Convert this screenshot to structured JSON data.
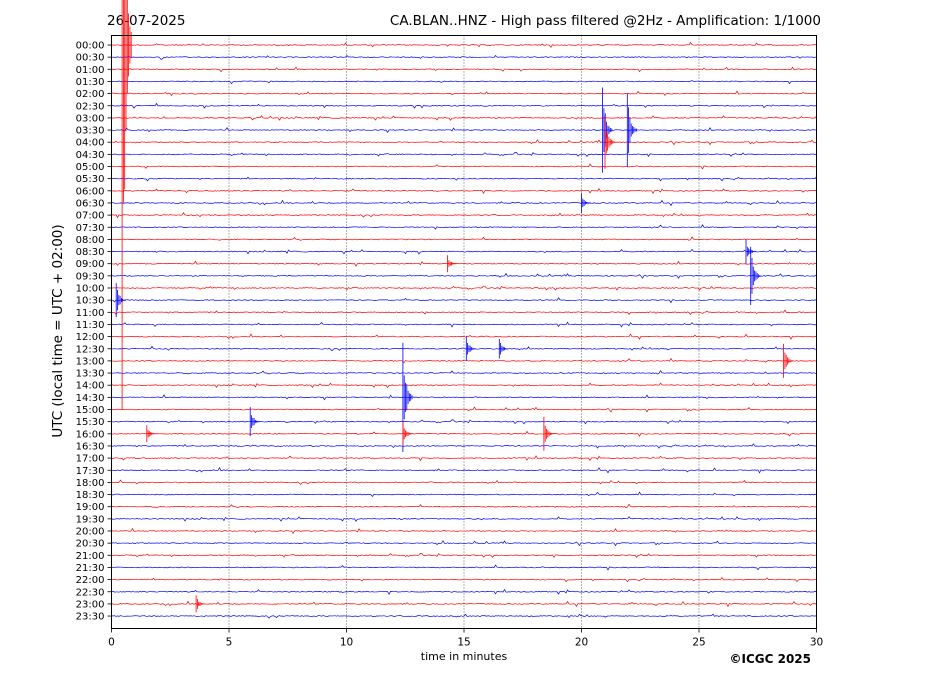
{
  "chart_data": {
    "type": "line",
    "header_left": "26-07-2025",
    "title": "CA.BLAN..HNZ - High pass filtered @2Hz - Amplification: 1/1000",
    "xlabel": "time in minutes",
    "ylabel": "UTC (local time = UTC + 02:00)",
    "copyright": "©ICGC 2025",
    "xlim": [
      0,
      30
    ],
    "x_ticks": [
      "0",
      "5",
      "10",
      "15",
      "20",
      "25",
      "30"
    ],
    "x_tick_values": [
      0,
      5,
      10,
      15,
      20,
      25,
      30
    ],
    "grid": "dotted vertical at 5-minute intervals",
    "row_labels": [
      "00:00",
      "00:30",
      "01:00",
      "01:30",
      "02:00",
      "02:30",
      "03:00",
      "03:30",
      "04:00",
      "04:30",
      "05:00",
      "05:30",
      "06:00",
      "06:30",
      "07:00",
      "07:30",
      "08:00",
      "08:30",
      "09:00",
      "09:30",
      "10:00",
      "10:30",
      "11:00",
      "11:30",
      "12:00",
      "12:30",
      "13:00",
      "13:30",
      "14:00",
      "14:30",
      "15:00",
      "15:30",
      "16:00",
      "16:30",
      "17:00",
      "17:30",
      "18:00",
      "18:30",
      "19:00",
      "19:30",
      "20:00",
      "20:30",
      "21:00",
      "21:30",
      "22:00",
      "22:30",
      "23:00",
      "23:30"
    ],
    "trace_colors": [
      "#ff0000",
      "#0000ff"
    ],
    "events": [
      {
        "row": 0,
        "minute": 0.45,
        "amp": 30
      },
      {
        "row": 7,
        "minute": 20.9,
        "amp": 3.5
      },
      {
        "row": 7,
        "minute": 21.95,
        "amp": 3
      },
      {
        "row": 8,
        "minute": 21.0,
        "amp": 2.2
      },
      {
        "row": 21,
        "minute": 0.2,
        "amp": 1.4
      },
      {
        "row": 19,
        "minute": 27.2,
        "amp": 2.4
      },
      {
        "row": 17,
        "minute": 27.0,
        "amp": 1.0
      },
      {
        "row": 25,
        "minute": 15.1,
        "amp": 1.0
      },
      {
        "row": 25,
        "minute": 16.5,
        "amp": 0.8
      },
      {
        "row": 26,
        "minute": 28.6,
        "amp": 1.4
      },
      {
        "row": 29,
        "minute": 12.4,
        "amp": 4.5
      },
      {
        "row": 31,
        "minute": 5.9,
        "amp": 1.2
      },
      {
        "row": 32,
        "minute": 12.4,
        "amp": 1.0
      },
      {
        "row": 32,
        "minute": 18.4,
        "amp": 1.4
      },
      {
        "row": 32,
        "minute": 1.5,
        "amp": 0.7
      },
      {
        "row": 13,
        "minute": 20.0,
        "amp": 0.8
      },
      {
        "row": 18,
        "minute": 14.3,
        "amp": 0.7
      },
      {
        "row": 46,
        "minute": 3.6,
        "amp": 0.7
      }
    ]
  }
}
